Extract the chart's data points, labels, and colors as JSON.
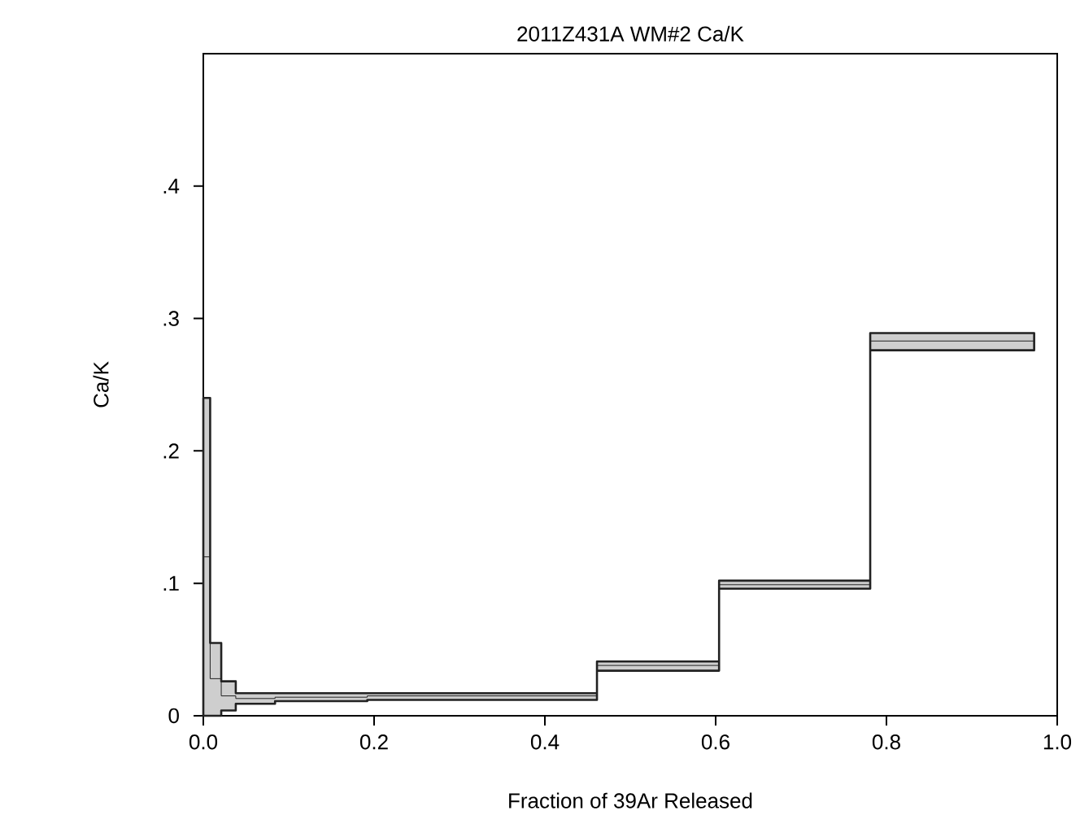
{
  "chart_data": {
    "type": "step",
    "title": "2011Z431A WM#2 Ca/K",
    "xlabel": "Fraction of 39Ar Released",
    "ylabel": "Ca/K",
    "series": [
      {
        "x": [
          0,
          0.008,
          0.021,
          0.038,
          0.084,
          0.135,
          0.192,
          0.461,
          0.604,
          0.781,
          0.973
        ],
        "values": [
          0.12,
          0.028,
          0.015,
          0.013,
          0.014,
          0.014,
          0.015,
          0.038,
          0.099,
          0.283,
          0.283
        ],
        "lower": [
          0,
          0,
          0.004,
          0.009,
          0.011,
          0.011,
          0.012,
          0.034,
          0.096,
          0.276,
          0.276
        ],
        "upper": [
          0.24,
          0.055,
          0.026,
          0.017,
          0.017,
          0.017,
          0.017,
          0.041,
          0.102,
          0.289,
          0.289
        ],
        "color": "#222222"
      }
    ],
    "xlim": [
      0,
      1
    ],
    "ylim": [
      0,
      0.5
    ],
    "xticks": [
      {
        "value": 0,
        "label": "0.0"
      },
      {
        "value": 0.2,
        "label": "0.2"
      },
      {
        "value": 0.4,
        "label": "0.4"
      },
      {
        "value": 0.6,
        "label": "0.6"
      },
      {
        "value": 0.8,
        "label": "0.8"
      },
      {
        "value": 1,
        "label": "1.0"
      }
    ],
    "yticks": [
      0,
      {
        "value": 0.1,
        "label": ".1"
      },
      {
        "value": 0.2,
        "label": ".2"
      },
      {
        "value": 0.3,
        "label": ".3"
      },
      {
        "value": 0.4,
        "label": ".4"
      }
    ]
  }
}
